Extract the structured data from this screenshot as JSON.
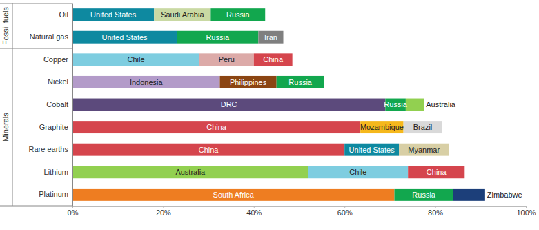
{
  "chart_data": {
    "type": "bar",
    "orientation": "horizontal",
    "stacked": true,
    "grid": false,
    "categories": [
      "Oil",
      "Natural gas",
      "Copper",
      "Nickel",
      "Cobalt",
      "Graphite",
      "Rare earths",
      "Lithium",
      "Platinum"
    ],
    "category_groups": [
      "Fossil fuels",
      "Fossil fuels",
      "Minerals",
      "Minerals",
      "Minerals",
      "Minerals",
      "Minerals",
      "Minerals",
      "Minerals"
    ],
    "series": [
      {
        "values": [
          18,
          23,
          28,
          32.5,
          69,
          63.5,
          60,
          52,
          71
        ],
        "labels": [
          "United States",
          "United States",
          "Chile",
          "Indonesia",
          "DRC",
          "China",
          "China",
          "Australia",
          "South Africa"
        ],
        "colors": [
          "#0e89a0",
          "#0e89a0",
          "#7ecde0",
          "#b39bc9",
          "#5c4a7c",
          "#d5454d",
          "#d5454d",
          "#92d050",
          "#ee7d21"
        ]
      },
      {
        "values": [
          12.5,
          18,
          12,
          12.5,
          4.5,
          9.5,
          12,
          22,
          13
        ],
        "labels": [
          "Saudi Arabia",
          "Russia",
          "Peru",
          "Philippines",
          "Russia",
          "Mozambique",
          "United States",
          "Chile",
          "Russia"
        ],
        "colors": [
          "#c9d9a3",
          "#12a74e",
          "#dcaaa8",
          "#8b4513",
          "#12a74e",
          "#f5b81c",
          "#0e89a0",
          "#7ecde0",
          "#12a74e"
        ]
      },
      {
        "values": [
          12,
          5.5,
          8.5,
          10.5,
          4,
          8.5,
          11,
          12.5,
          7
        ],
        "labels": [
          "Russia",
          "Iran",
          "China",
          "Russia",
          "Australia",
          "Brazil",
          "Myanmar",
          "China",
          "Zimbabwe"
        ],
        "colors": [
          "#12a74e",
          "#7f7f7f",
          "#d5454d",
          "#12a74e",
          "#92d050",
          "#d9d9d9",
          "#d8cfa5",
          "#d5454d",
          "#1c3f7a"
        ]
      }
    ],
    "xlim": [
      0,
      100
    ],
    "xticks": [
      {
        "value": 0,
        "label": "0%"
      },
      {
        "value": 20,
        "label": "20%"
      },
      {
        "value": 40,
        "label": "40%"
      },
      {
        "value": 60,
        "label": "60%"
      },
      {
        "value": 80,
        "label": "80%"
      },
      {
        "value": 100,
        "label": "100%"
      }
    ]
  }
}
